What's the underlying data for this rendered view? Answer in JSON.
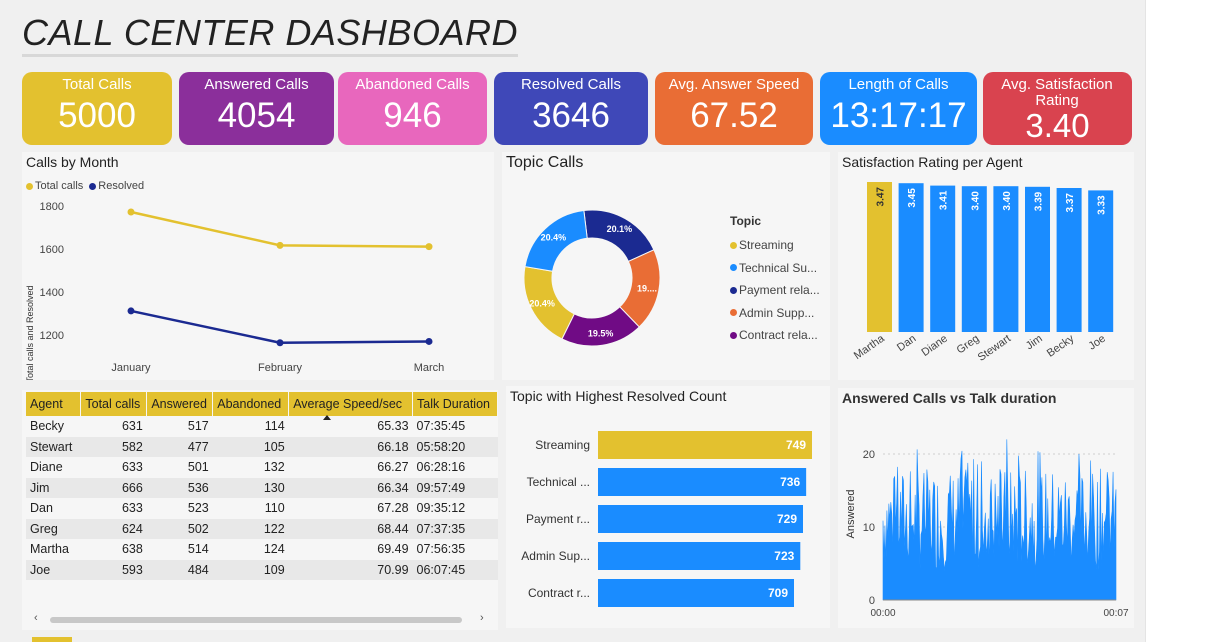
{
  "dashboard": {
    "title": "CALL CENTER DASHBOARD",
    "kpis": [
      {
        "label": "Total Calls",
        "value": "5000",
        "color": "#e3c12f"
      },
      {
        "label": "Answered Calls",
        "value": "4054",
        "color": "#8b2f9b"
      },
      {
        "label": "Abandoned Calls",
        "value": "946",
        "color": "#e867bd"
      },
      {
        "label": "Resolved Calls",
        "value": "3646",
        "color": "#3f48b8"
      },
      {
        "label": "Avg. Answer Speed",
        "value": "67.52",
        "color": "#e96d35"
      },
      {
        "label": "Length of Calls",
        "value": "13:17:17",
        "color": "#1a8cff"
      },
      {
        "label": "Avg. Satisfaction Rating",
        "value": "3.40",
        "color": "#d9434f"
      }
    ]
  },
  "colors": {
    "yellow": "#e3c12f",
    "blue": "#1a8cff",
    "navy": "#1b2a91",
    "orange": "#e96d35",
    "purple": "#700b85"
  },
  "chart_data": [
    {
      "type": "line",
      "title": "Calls by Month",
      "ylabel": "Total calls and Resolved",
      "categories": [
        "January",
        "February",
        "March"
      ],
      "series": [
        {
          "name": "Total calls",
          "values": [
            1772,
            1617,
            1611
          ],
          "color": "#e3c12f"
        },
        {
          "name": "Resolved",
          "values": [
            1312,
            1164,
            1170
          ],
          "color": "#1b2a91"
        }
      ],
      "yticks": [
        "1800",
        "1600",
        "1400",
        "1200"
      ],
      "ylim": [
        1150,
        1850
      ],
      "legend": "top-left"
    },
    {
      "type": "pie",
      "title": "Topic Calls",
      "legend_title": "Topic",
      "slices": [
        {
          "name": "Streaming",
          "value": 20.4,
          "label": "20.4%",
          "color": "#e3c12f"
        },
        {
          "name": "Technical Su...",
          "value": 20.4,
          "label": "20.4%",
          "color": "#1a8cff"
        },
        {
          "name": "Payment rela...",
          "value": 20.1,
          "label": "20.1%",
          "color": "#1b2a91"
        },
        {
          "name": "Admin Supp...",
          "value": 19.6,
          "label": "19....",
          "color": "#e96d35"
        },
        {
          "name": "Contract rela...",
          "value": 19.5,
          "label": "19.5%",
          "color": "#700b85"
        }
      ],
      "legend": "right"
    },
    {
      "type": "bar",
      "title": "Satisfaction Rating per Agent",
      "categories": [
        "Martha",
        "Dan",
        "Diane",
        "Greg",
        "Stewart",
        "Jim",
        "Becky",
        "Joe"
      ],
      "values": [
        3.47,
        3.45,
        3.41,
        3.4,
        3.4,
        3.39,
        3.37,
        3.33
      ],
      "labels": [
        "3.47",
        "3.45",
        "3.41",
        "3.40",
        "3.40",
        "3.39",
        "3.37",
        "3.33"
      ],
      "highlight_color": "#e3c12f",
      "color": "#1a8cff"
    },
    {
      "type": "table",
      "columns": [
        "Agent",
        "Total calls",
        "Answered",
        "Abandoned",
        "Average Speed/sec",
        "Talk Duration"
      ],
      "rows": [
        [
          "Becky",
          "631",
          "517",
          "114",
          "65.33",
          "07:35:45"
        ],
        [
          "Stewart",
          "582",
          "477",
          "105",
          "66.18",
          "05:58:20"
        ],
        [
          "Diane",
          "633",
          "501",
          "132",
          "66.27",
          "06:28:16"
        ],
        [
          "Jim",
          "666",
          "536",
          "130",
          "66.34",
          "09:57:49"
        ],
        [
          "Dan",
          "633",
          "523",
          "110",
          "67.28",
          "09:35:12"
        ],
        [
          "Greg",
          "624",
          "502",
          "122",
          "68.44",
          "07:37:35"
        ],
        [
          "Martha",
          "638",
          "514",
          "124",
          "69.49",
          "07:56:35"
        ],
        [
          "Joe",
          "593",
          "484",
          "109",
          "70.99",
          "06:07:45"
        ]
      ]
    },
    {
      "type": "bar",
      "orientation": "horizontal",
      "title": "Topic with Highest Resolved Count",
      "categories": [
        "Streaming",
        "Technical ...",
        "Payment r...",
        "Admin Sup...",
        "Contract r..."
      ],
      "values": [
        749,
        736,
        729,
        723,
        709
      ],
      "labels": [
        "749",
        "736",
        "729",
        "723",
        "709"
      ],
      "highlight_color": "#e3c12f",
      "color": "#1a8cff"
    },
    {
      "type": "area",
      "title": "Answered Calls vs Talk duration",
      "ylabel": "Answered",
      "xticks": [
        "00:00",
        "00:07"
      ],
      "yticks": [
        "20",
        "10",
        "0"
      ],
      "ylim": [
        0,
        25
      ],
      "color": "#1a8cff",
      "sample_count": 240,
      "peak": 22
    }
  ]
}
